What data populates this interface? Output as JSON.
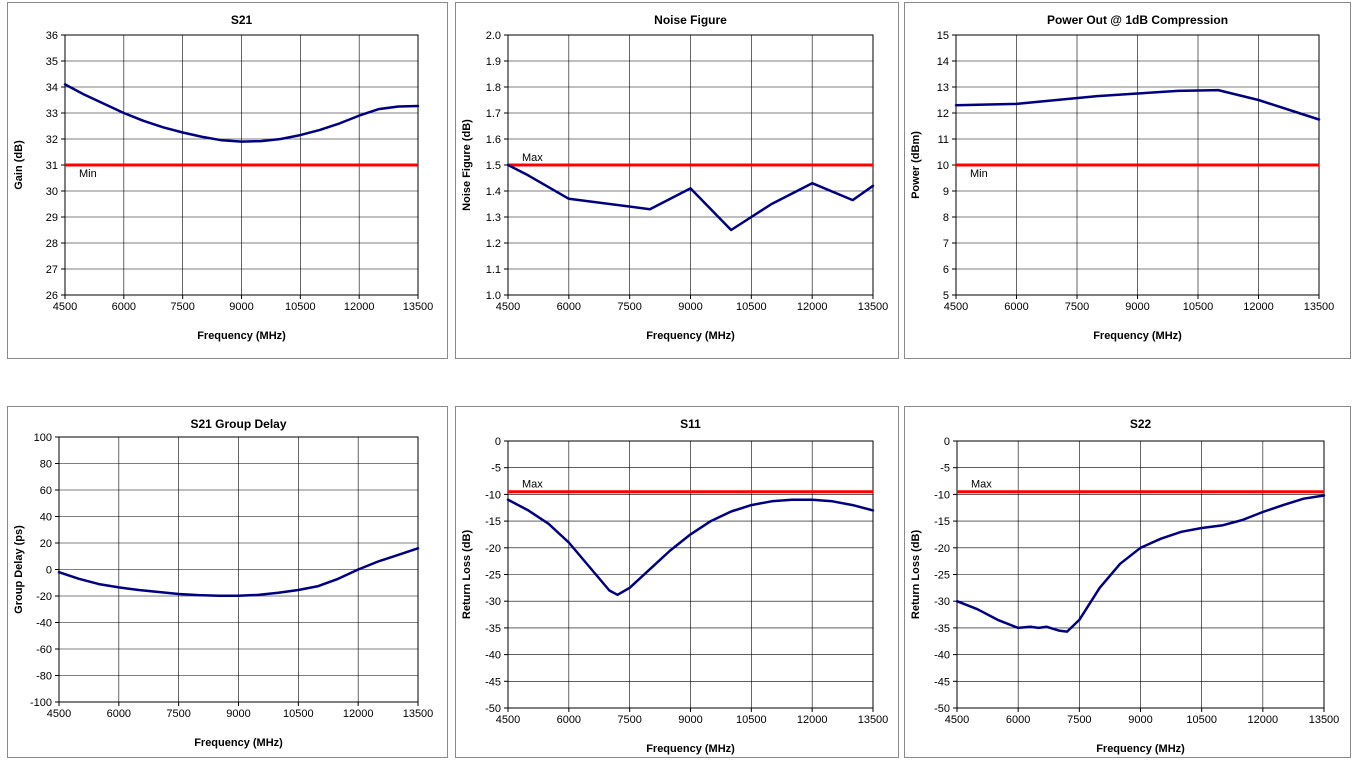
{
  "chart_data": [
    {
      "id": "s21",
      "type": "line",
      "title": "S21",
      "xlabel": "Frequency (MHz)",
      "ylabel": "Gain (dB)",
      "xlim": [
        4500,
        13500
      ],
      "ylim": [
        26,
        36
      ],
      "xticks": [
        4500,
        6000,
        7500,
        9000,
        10500,
        12000,
        13500
      ],
      "yticks": [
        26,
        27,
        28,
        29,
        30,
        31,
        32,
        33,
        34,
        35,
        36
      ],
      "grid": true,
      "series": [
        {
          "color": "#000080",
          "x": [
            4500,
            5000,
            5500,
            6000,
            6500,
            7000,
            7500,
            8000,
            8500,
            9000,
            9500,
            10000,
            10500,
            11000,
            11500,
            12000,
            12500,
            13000,
            13500
          ],
          "y": [
            34.1,
            33.7,
            33.35,
            33.0,
            32.7,
            32.45,
            32.25,
            32.08,
            31.95,
            31.9,
            31.92,
            32.0,
            32.15,
            32.35,
            32.6,
            32.9,
            33.15,
            33.25,
            33.27
          ]
        }
      ],
      "limit": {
        "label": "Min",
        "value": 31,
        "color": "#ff0000"
      }
    },
    {
      "id": "nf",
      "type": "line",
      "title": "Noise Figure",
      "xlabel": "Frequency (MHz)",
      "ylabel": "Noise Figure (dB)",
      "xlim": [
        4500,
        13500
      ],
      "ylim": [
        1.0,
        2.0
      ],
      "xticks": [
        4500,
        6000,
        7500,
        9000,
        10500,
        12000,
        13500
      ],
      "yticks": [
        "1.0",
        "1.1",
        "1.2",
        "1.3",
        "1.4",
        "1.5",
        "1.6",
        "1.7",
        "1.8",
        "1.9",
        "2.0"
      ],
      "grid": true,
      "series": [
        {
          "color": "#000080",
          "x": [
            4500,
            5000,
            6000,
            8000,
            9000,
            10000,
            11000,
            12000,
            13000,
            13500
          ],
          "y": [
            1.5,
            1.46,
            1.37,
            1.33,
            1.41,
            1.25,
            1.35,
            1.43,
            1.365,
            1.42
          ]
        }
      ],
      "limit": {
        "label": "Max",
        "value": 1.5,
        "color": "#ff0000"
      }
    },
    {
      "id": "p1db",
      "type": "line",
      "title": "Power Out @ 1dB Compression",
      "xlabel": "Frequency (MHz)",
      "ylabel": "Power (dBm)",
      "xlim": [
        4500,
        13500
      ],
      "ylim": [
        5,
        15
      ],
      "xticks": [
        4500,
        6000,
        7500,
        9000,
        10500,
        12000,
        13500
      ],
      "yticks": [
        5,
        6,
        7,
        8,
        9,
        10,
        11,
        12,
        13,
        14,
        15
      ],
      "grid": true,
      "series": [
        {
          "color": "#000080",
          "x": [
            4500,
            6000,
            7000,
            8000,
            9000,
            10000,
            11000,
            12000,
            13000,
            13500
          ],
          "y": [
            12.3,
            12.35,
            12.5,
            12.65,
            12.75,
            12.85,
            12.88,
            12.5,
            12.0,
            11.75
          ]
        }
      ],
      "limit": {
        "label": "Min",
        "value": 10,
        "color": "#ff0000"
      }
    },
    {
      "id": "gd",
      "type": "line",
      "title": "S21 Group Delay",
      "xlabel": "Frequency (MHz)",
      "ylabel": "Group Delay (ps)",
      "xlim": [
        4500,
        13500
      ],
      "ylim": [
        -100,
        100
      ],
      "xticks": [
        4500,
        6000,
        7500,
        9000,
        10500,
        12000,
        13500
      ],
      "yticks": [
        -100,
        -80,
        -60,
        -40,
        -20,
        0,
        20,
        40,
        60,
        80,
        100
      ],
      "grid": true,
      "series": [
        {
          "color": "#000080",
          "x": [
            4500,
            5000,
            5500,
            6000,
            6500,
            7000,
            7500,
            8000,
            8500,
            9000,
            9500,
            10000,
            10500,
            11000,
            11500,
            12000,
            12500,
            13000,
            13500
          ],
          "y": [
            -2,
            -7,
            -11,
            -13.5,
            -15.5,
            -17,
            -18.5,
            -19.3,
            -19.8,
            -19.8,
            -19.2,
            -17.5,
            -15.5,
            -12.5,
            -7,
            0,
            6,
            11,
            16
          ]
        }
      ],
      "limit": null
    },
    {
      "id": "s11",
      "type": "line",
      "title": "S11",
      "xlabel": "Frequency (MHz)",
      "ylabel": "Return Loss (dB)",
      "xlim": [
        4500,
        13500
      ],
      "ylim": [
        -50,
        0
      ],
      "xticks": [
        4500,
        6000,
        7500,
        9000,
        10500,
        12000,
        13500
      ],
      "yticks": [
        -50,
        -45,
        -40,
        -35,
        -30,
        -25,
        -20,
        -15,
        -10,
        -5,
        0
      ],
      "grid": true,
      "series": [
        {
          "color": "#000080",
          "x": [
            4500,
            5000,
            5500,
            6000,
            6500,
            7000,
            7200,
            7500,
            8000,
            8500,
            9000,
            9500,
            10000,
            10500,
            11000,
            11500,
            12000,
            12500,
            13000,
            13500
          ],
          "y": [
            -11,
            -13,
            -15.5,
            -19,
            -23.5,
            -28,
            -28.8,
            -27.5,
            -24,
            -20.5,
            -17.5,
            -15,
            -13.2,
            -12,
            -11.3,
            -11,
            -11,
            -11.3,
            -12,
            -13
          ]
        }
      ],
      "limit": {
        "label": "Max",
        "value": -9.5,
        "color": "#ff0000"
      }
    },
    {
      "id": "s22",
      "type": "line",
      "title": "S22",
      "xlabel": "Frequency (MHz)",
      "ylabel": "Return Loss (dB)",
      "xlim": [
        4500,
        13500
      ],
      "ylim": [
        -50,
        0
      ],
      "xticks": [
        4500,
        6000,
        7500,
        9000,
        10500,
        12000,
        13500
      ],
      "yticks": [
        -50,
        -45,
        -40,
        -35,
        -30,
        -25,
        -20,
        -15,
        -10,
        -5,
        0
      ],
      "grid": true,
      "series": [
        {
          "color": "#000080",
          "x": [
            4500,
            5000,
            5500,
            6000,
            6300,
            6500,
            6700,
            7000,
            7200,
            7500,
            8000,
            8500,
            9000,
            9500,
            10000,
            10500,
            11000,
            11500,
            12000,
            12500,
            13000,
            13500
          ],
          "y": [
            -30,
            -31.5,
            -33.5,
            -35,
            -34.8,
            -35,
            -34.8,
            -35.5,
            -35.7,
            -33.5,
            -27.5,
            -23,
            -20,
            -18.3,
            -17,
            -16.3,
            -15.8,
            -14.8,
            -13.3,
            -12,
            -10.8,
            -10.2
          ]
        }
      ],
      "limit": {
        "label": "Max",
        "value": -9.5,
        "color": "#ff0000"
      }
    }
  ]
}
